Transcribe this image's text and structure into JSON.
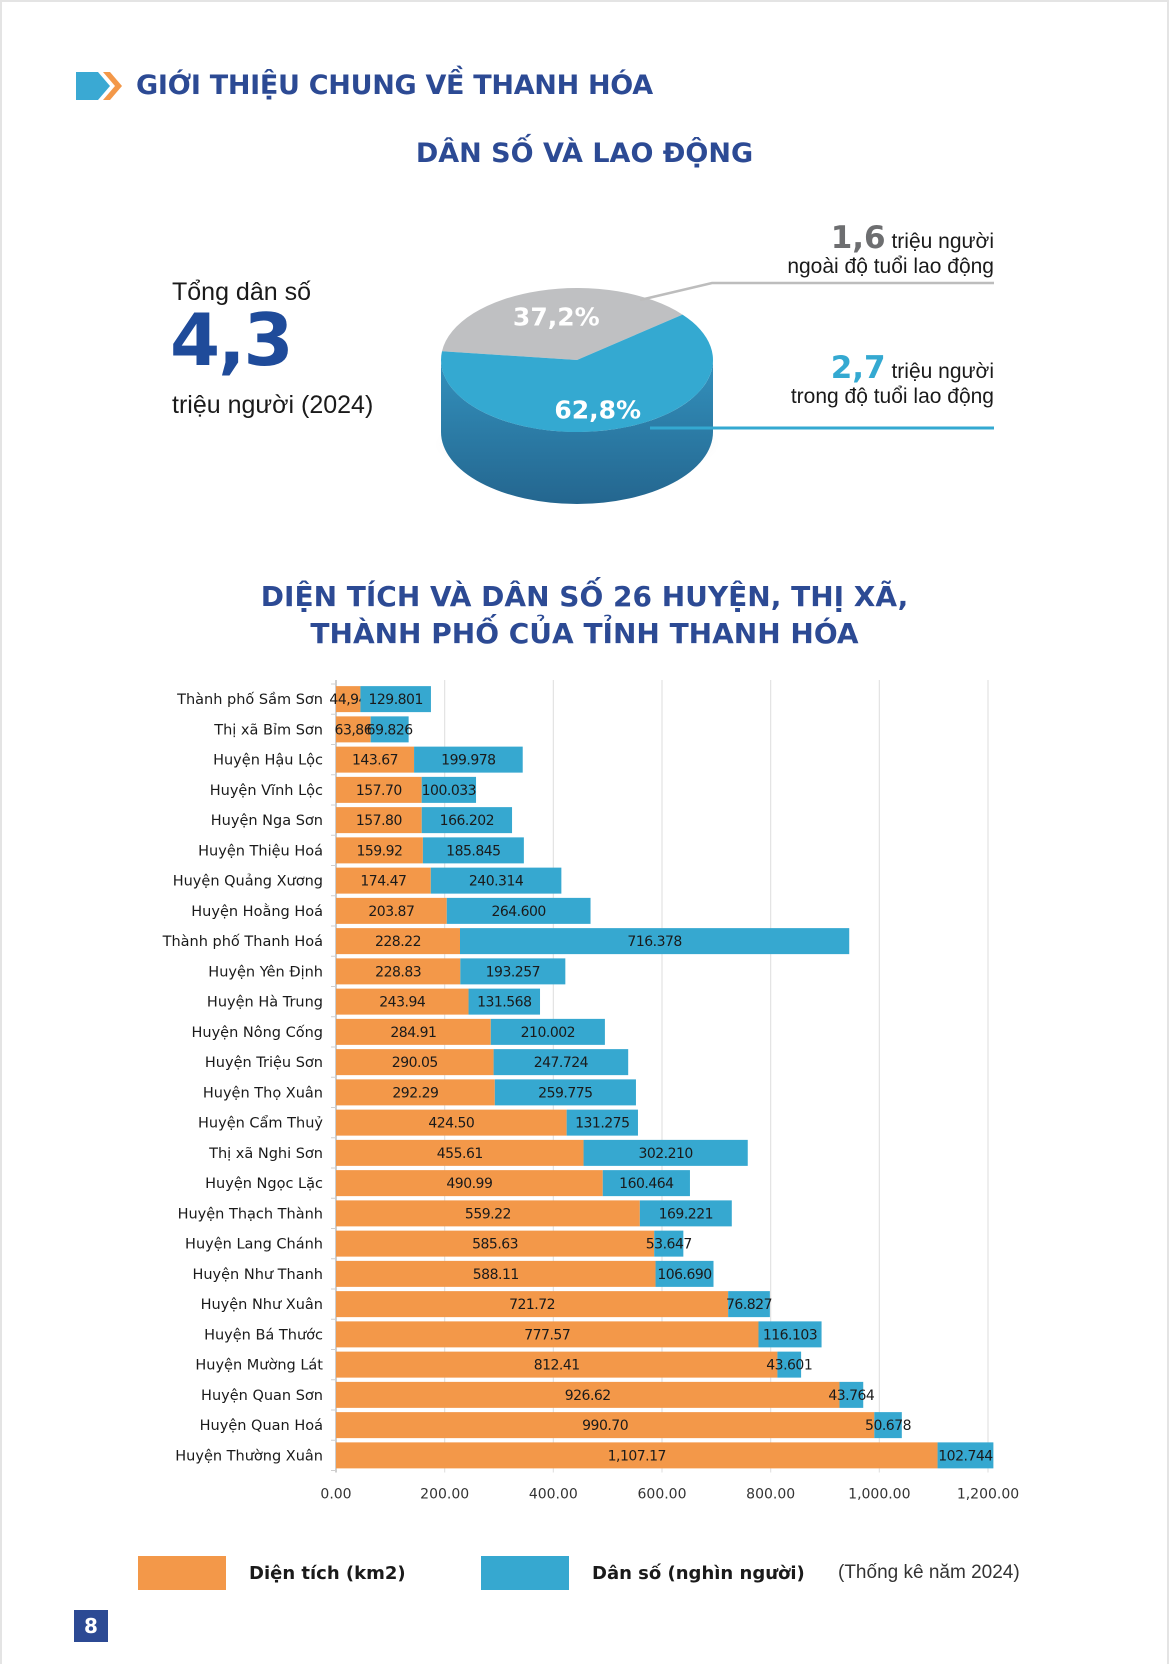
{
  "header": {
    "section_title": "GIỚI THIỆU CHUNG VỀ THANH HÓA",
    "subsection_title": "DÂN SỐ VÀ LAO ĐỘNG"
  },
  "population_summary": {
    "label": "Tổng dân số",
    "value": "4,3",
    "unit": "triệu người (2024)",
    "pie": {
      "slices": [
        {
          "name": "Ngoài độ tuổi lao động",
          "percent": 37.2,
          "label": "37,2%",
          "color": "#bfc0c2"
        },
        {
          "name": "Trong độ tuổi lao động",
          "percent": 62.8,
          "label": "62,8%",
          "color": "#34a9d1"
        }
      ]
    },
    "callouts": [
      {
        "value": "1,6",
        "unit": "triệu người",
        "desc": "ngoài độ tuổi lao động",
        "color": "#6d6e70"
      },
      {
        "value": "2,7",
        "unit": "triệu người",
        "desc": "trong độ tuổi lao động",
        "color": "#34a9d1"
      }
    ]
  },
  "chart_data": {
    "type": "bar",
    "orientation": "horizontal",
    "stacked": true,
    "title": "DIỆN TÍCH VÀ DÂN SỐ 26 HUYỆN, THỊ XÃ, THÀNH PHỐ CỦA TỈNH THANH HÓA",
    "title_lines": [
      "DIỆN TÍCH VÀ DÂN SỐ 26 HUYỆN, THỊ XÃ,",
      "THÀNH PHỐ CỦA TỈNH THANH HÓA"
    ],
    "categories": [
      "Thành phố Sầm Sơn",
      "Thị xã Bỉm Sơn",
      "Huyện Hậu Lộc",
      "Huyện Vĩnh Lộc",
      "Huyện Nga Sơn",
      "Huyện Thiệu Hoá",
      "Huyện Quảng Xương",
      "Huyện Hoằng Hoá",
      "Thành phố Thanh Hoá",
      "Huyện Yên Định",
      "Huyện Hà Trung",
      "Huyện Nông Cống",
      "Huyện Triệu Sơn",
      "Huyện Thọ Xuân",
      "Huyện Cẩm Thuỷ",
      "Thị xã Nghi Sơn",
      "Huyện Ngọc Lặc",
      "Huyện Thạch Thành",
      "Huyện Lang Chánh",
      "Huyện Như Thanh",
      "Huyện Như Xuân",
      "Huyện Bá Thước",
      "Huyện Mường Lát",
      "Huyện Quan Sơn",
      "Huyện Quan Hoá",
      "Huyện Thường Xuân"
    ],
    "series": [
      {
        "name": "Diện tích (km2)",
        "color": "#f39849",
        "values": [
          44.94,
          63.86,
          143.67,
          157.7,
          157.8,
          159.92,
          174.47,
          203.87,
          228.22,
          228.83,
          243.94,
          284.91,
          290.05,
          292.29,
          424.5,
          455.61,
          490.99,
          559.22,
          585.63,
          588.11,
          721.72,
          777.57,
          812.41,
          926.62,
          990.7,
          1107.17
        ],
        "labels": [
          "44,94",
          "63,86",
          "143.67",
          "157.70",
          "157.80",
          "159.92",
          "174.47",
          "203.87",
          "228.22",
          "228.83",
          "243.94",
          "284.91",
          "290.05",
          "292.29",
          "424.50",
          "455.61",
          "490.99",
          "559.22",
          "585.63",
          "588.11",
          "721.72",
          "777.57",
          "812.41",
          "926.62",
          "990.70",
          "1,107.17"
        ]
      },
      {
        "name": "Dân số (nghìn người)",
        "color": "#36a8d0",
        "values": [
          129.801,
          69.826,
          199.978,
          100.033,
          166.202,
          185.845,
          240.314,
          264.6,
          716.378,
          193.257,
          131.568,
          210.002,
          247.724,
          259.775,
          131.275,
          302.21,
          160.464,
          169.221,
          53.647,
          106.69,
          76.827,
          116.103,
          43.601,
          43.764,
          50.678,
          102.744
        ],
        "labels": [
          "129.801",
          "69.826",
          "199.978",
          "100.033",
          "166.202",
          "185.845",
          "240.314",
          "264.600",
          "716.378",
          "193.257",
          "131.568",
          "210.002",
          "247.724",
          "259.775",
          "131.275",
          "302.210",
          "160.464",
          "169.221",
          "53.647",
          "106.690",
          "76.827",
          "116.103",
          "43.601",
          "43.764",
          "50.678",
          "102.744"
        ]
      }
    ],
    "xlim": [
      0,
      1200
    ],
    "xticks": [
      0,
      200,
      400,
      600,
      800,
      1000,
      1200
    ],
    "xtick_labels": [
      "0.00",
      "200.00",
      "400.00",
      "600.00",
      "800.00",
      "1,000.00",
      "1,200.00"
    ],
    "grid": true,
    "legend_position": "bottom",
    "note": "(Thống kê năm 2024)"
  },
  "legend": {
    "items": [
      {
        "label": "Diện tích (km2)",
        "color": "#f39849"
      },
      {
        "label": "Dân số (nghìn người)",
        "color": "#36a8d0"
      }
    ],
    "note": "(Thống kê năm 2024)"
  },
  "footer": {
    "page_number": "8"
  }
}
